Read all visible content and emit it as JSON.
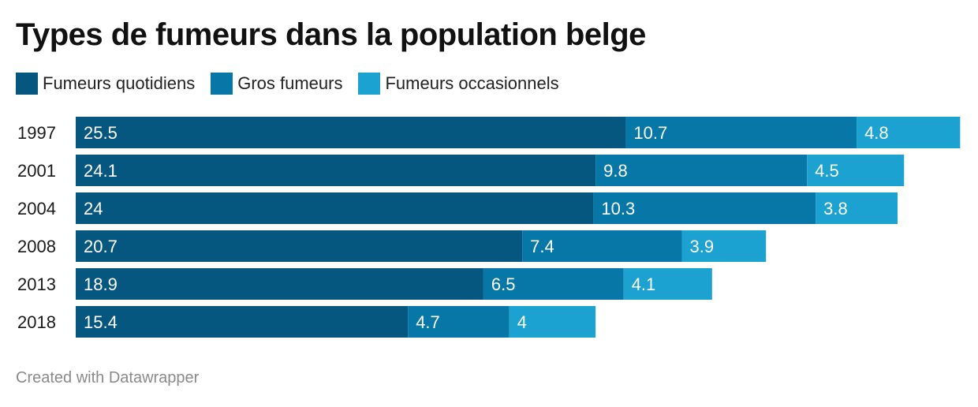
{
  "chart_data": {
    "type": "bar",
    "orientation": "horizontal",
    "stacked": true,
    "title": "Types de fumeurs dans la population belge",
    "categories": [
      "1997",
      "2001",
      "2004",
      "2008",
      "2013",
      "2018"
    ],
    "series": [
      {
        "name": "Fumeurs quotidiens",
        "color": "#05577f",
        "values": [
          25.5,
          24.1,
          24,
          20.7,
          18.9,
          15.4
        ]
      },
      {
        "name": "Gros fumeurs",
        "color": "#0677a6",
        "values": [
          10.7,
          9.8,
          10.3,
          7.4,
          6.5,
          4.7
        ]
      },
      {
        "name": "Fumeurs occasionnels",
        "color": "#1ba2d1",
        "values": [
          4.8,
          4.5,
          3.8,
          3.9,
          4.1,
          4
        ]
      }
    ],
    "data_labels": true,
    "legend_position": "top-left",
    "grid": false
  },
  "footer": "Created with Datawrapper"
}
